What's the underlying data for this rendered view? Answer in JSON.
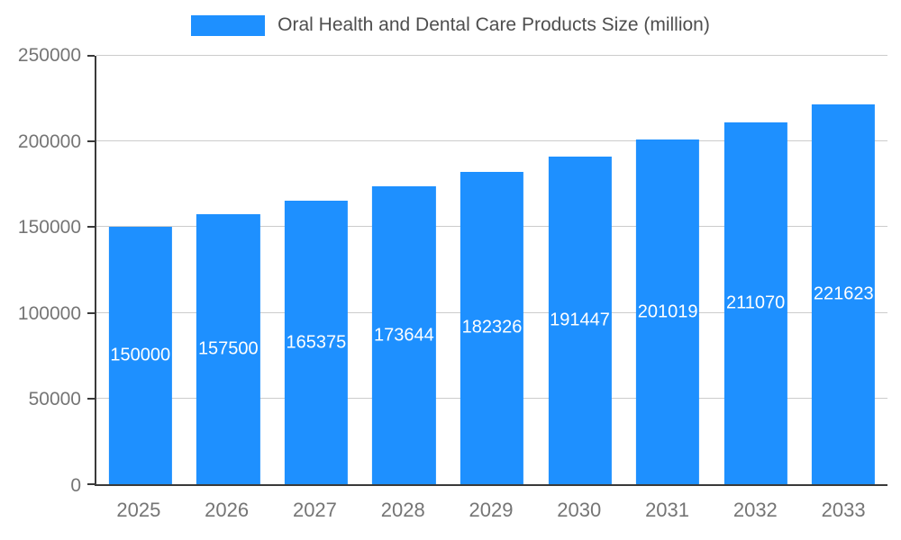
{
  "chart_data": {
    "type": "bar",
    "title": "Oral Health and Dental Care Products Size (million)",
    "categories": [
      "2025",
      "2026",
      "2027",
      "2028",
      "2029",
      "2030",
      "2031",
      "2032",
      "2033"
    ],
    "values": [
      150000,
      157500,
      165375,
      173644,
      182326,
      191447,
      201019,
      211070,
      221623
    ],
    "ylim": [
      0,
      250000
    ],
    "yticks": [
      0,
      50000,
      100000,
      150000,
      200000,
      250000
    ],
    "grid": true,
    "legend_position": "top",
    "bar_color": "#1e90ff",
    "value_label_color": "#ffffff",
    "axis_text_color": "#757575",
    "legend_text_color": "#4e4e4e",
    "gridline_color": "#cccccc",
    "axis_line_color": "#3a3a3a"
  }
}
